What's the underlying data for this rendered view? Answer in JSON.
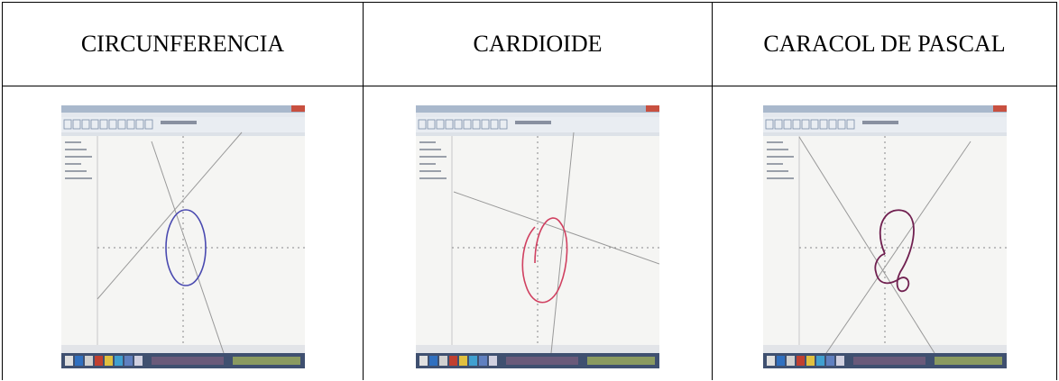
{
  "table": {
    "headers": [
      "CIRCUNFERENCIA",
      "CARDIOIDE",
      "CARACOL DE PASCAL"
    ]
  }
}
